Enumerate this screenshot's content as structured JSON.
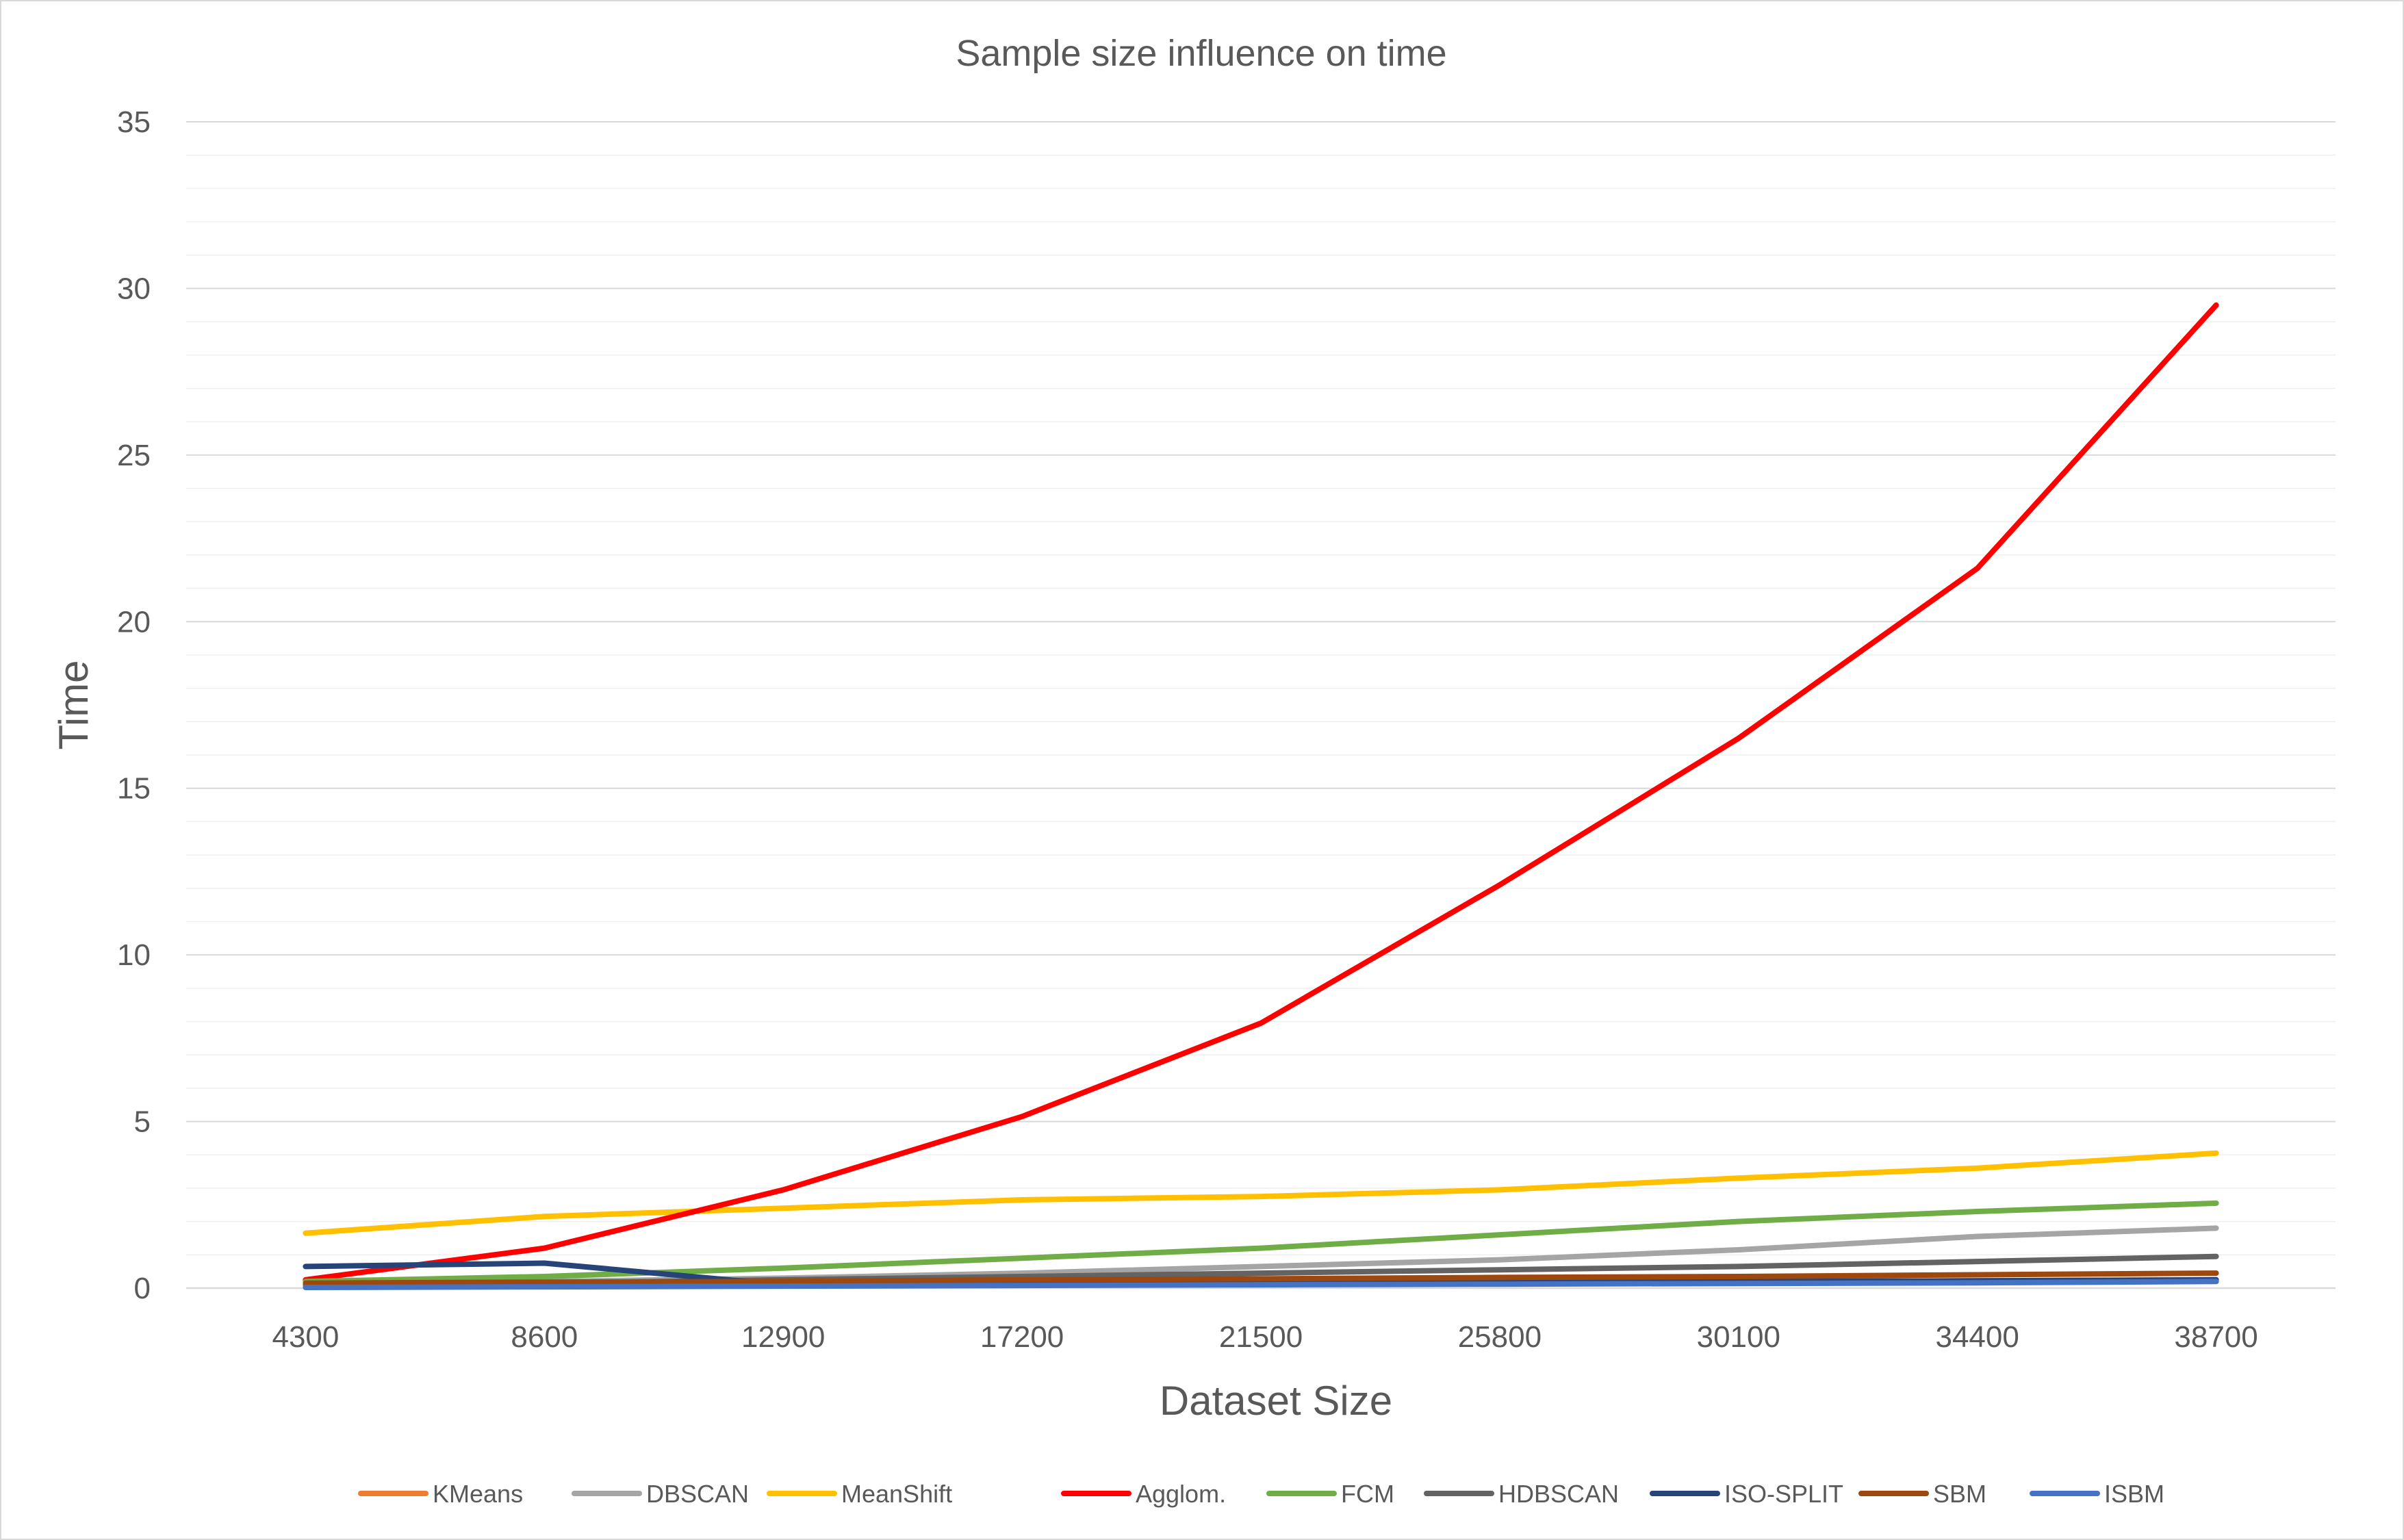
{
  "chart_data": {
    "type": "line",
    "title": "Sample size influence on time",
    "xlabel": "Dataset Size",
    "ylabel": "Time",
    "x": [
      4300,
      8600,
      12900,
      17200,
      21500,
      25800,
      30100,
      34400,
      38700
    ],
    "ylim": [
      0,
      35
    ],
    "yticks": [
      0,
      5,
      10,
      15,
      20,
      25,
      30,
      35
    ],
    "grid": true,
    "legend_position": "bottom",
    "series": [
      {
        "name": "KMeans",
        "color": "#ED7D31",
        "values": [
          0.05,
          0.08,
          0.1,
          0.12,
          0.15,
          0.17,
          0.2,
          0.22,
          0.25
        ]
      },
      {
        "name": "DBSCAN",
        "color": "#A5A5A5",
        "values": [
          0.1,
          0.2,
          0.3,
          0.45,
          0.65,
          0.85,
          1.15,
          1.55,
          1.8
        ]
      },
      {
        "name": "MeanShift",
        "color": "#FFC000",
        "values": [
          1.65,
          2.15,
          2.4,
          2.65,
          2.75,
          2.95,
          3.3,
          3.6,
          4.05
        ]
      },
      {
        "name": "Agglom.",
        "color": "#FF0000",
        "values": [
          0.25,
          1.2,
          2.95,
          5.15,
          7.95,
          12.1,
          16.5,
          21.6,
          29.5
        ]
      },
      {
        "name": "FCM",
        "color": "#70AD47",
        "values": [
          0.2,
          0.35,
          0.6,
          0.9,
          1.2,
          1.6,
          2.0,
          2.3,
          2.55
        ]
      },
      {
        "name": "HDBSCAN",
        "color": "#636363",
        "values": [
          0.1,
          0.15,
          0.25,
          0.35,
          0.45,
          0.55,
          0.65,
          0.8,
          0.95
        ]
      },
      {
        "name": "ISO-SPLIT",
        "color": "#264478",
        "values": [
          0.65,
          0.75,
          0.1,
          0.12,
          0.15,
          0.17,
          0.2,
          0.22,
          0.25
        ]
      },
      {
        "name": "SBM",
        "color": "#9E480E",
        "values": [
          0.15,
          0.18,
          0.2,
          0.25,
          0.28,
          0.32,
          0.35,
          0.4,
          0.45
        ]
      },
      {
        "name": "ISBM",
        "color": "#4472C4",
        "values": [
          0.02,
          0.04,
          0.06,
          0.08,
          0.1,
          0.12,
          0.14,
          0.16,
          0.2
        ]
      }
    ]
  }
}
